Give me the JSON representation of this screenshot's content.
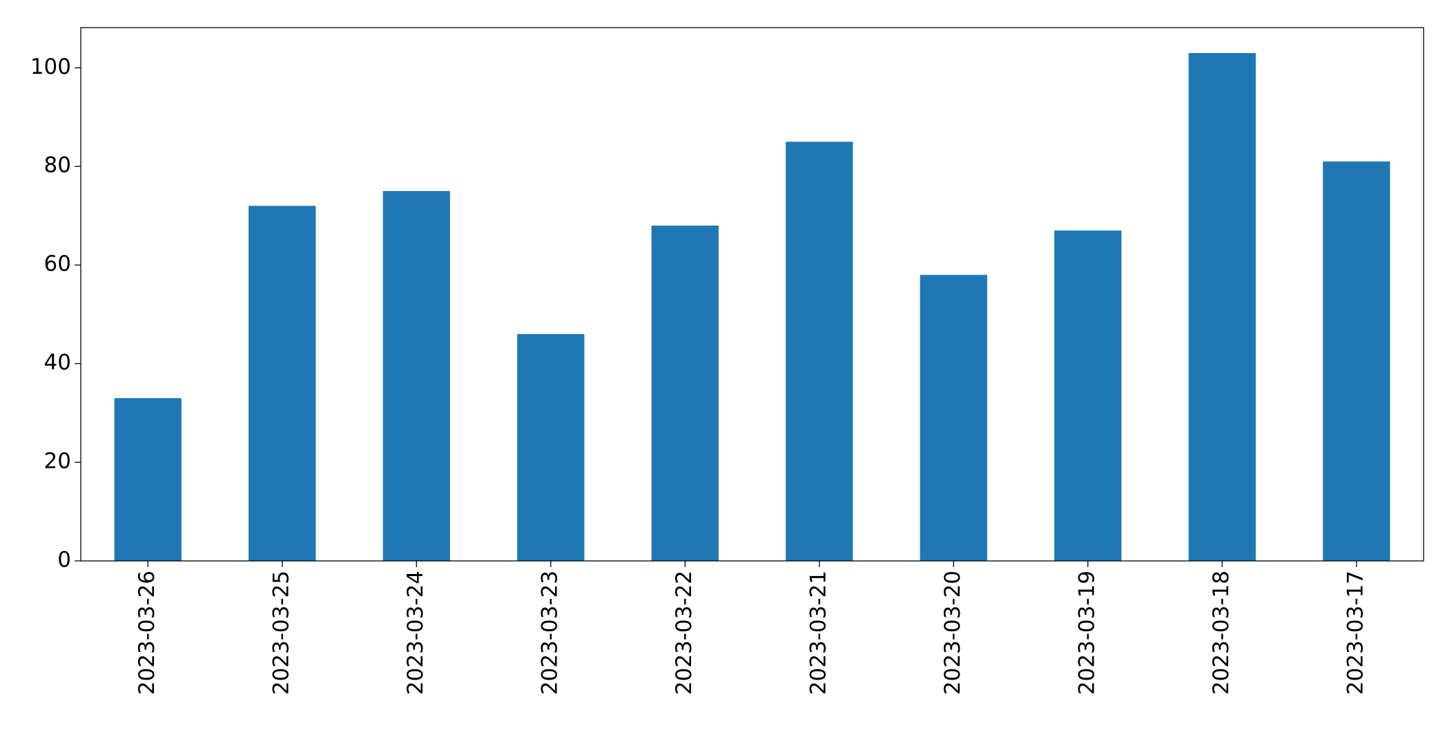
{
  "chart_data": {
    "type": "bar",
    "categories": [
      "2023-03-26",
      "2023-03-25",
      "2023-03-24",
      "2023-03-23",
      "2023-03-22",
      "2023-03-21",
      "2023-03-20",
      "2023-03-19",
      "2023-03-18",
      "2023-03-17"
    ],
    "values": [
      33,
      72,
      75,
      46,
      68,
      85,
      58,
      67,
      103,
      81
    ],
    "color": "#1f77b4",
    "ylim": [
      0,
      108.15
    ],
    "yticks": [
      0,
      20,
      40,
      60,
      80,
      100
    ],
    "grid": false
  }
}
